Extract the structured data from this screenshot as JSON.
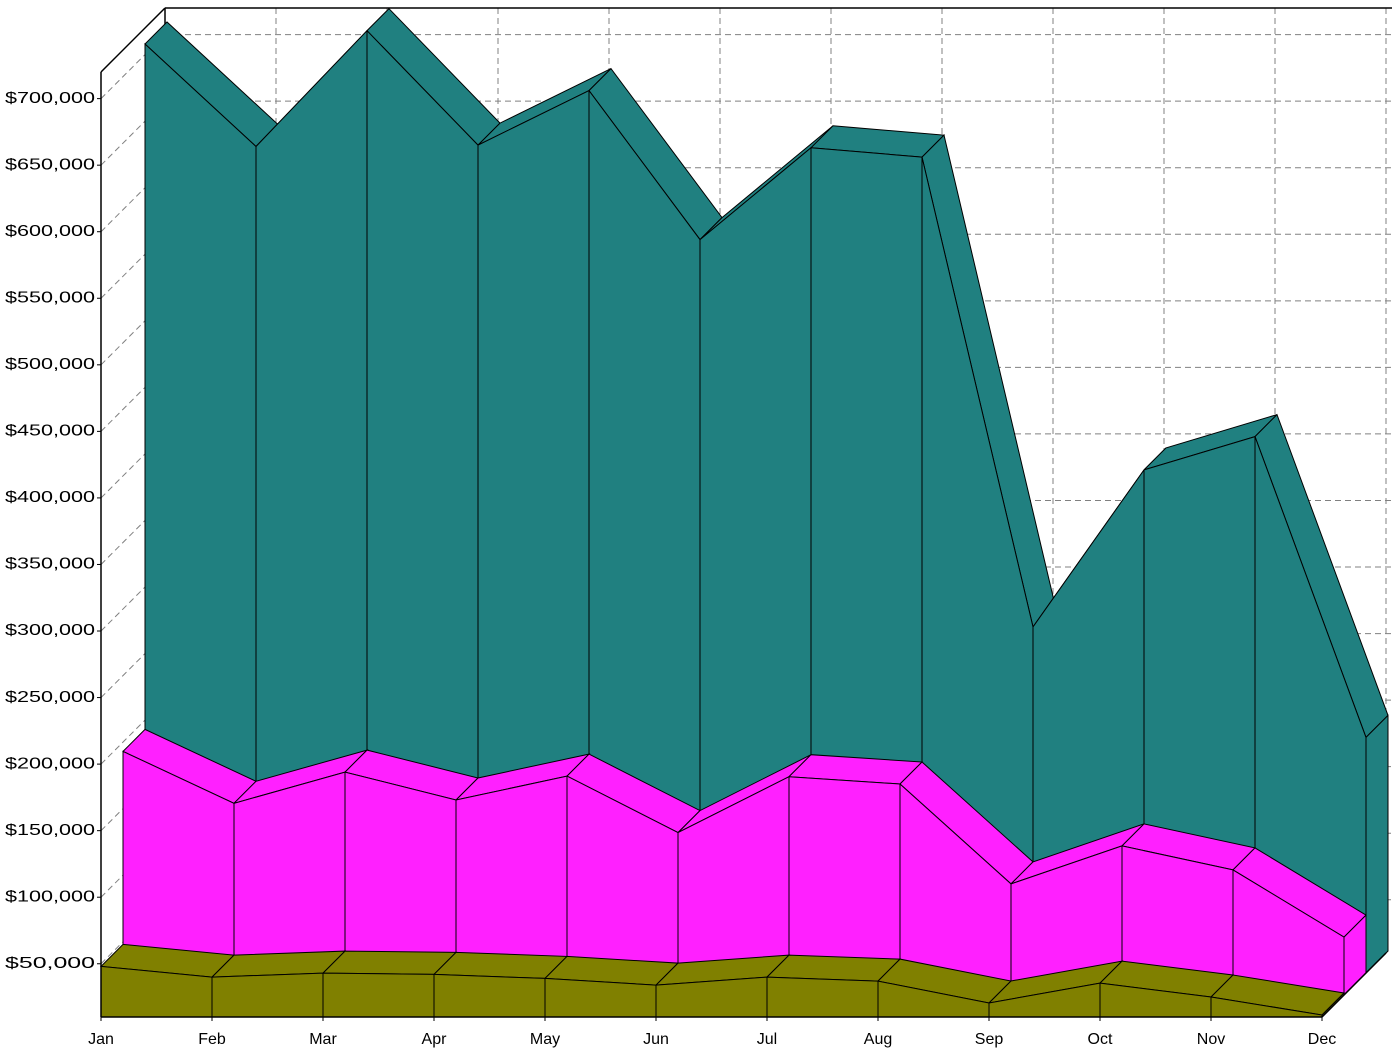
{
  "chart_data": {
    "type": "area3d",
    "categories": [
      "Jan",
      "Feb",
      "Mar",
      "Apr",
      "May",
      "Jun",
      "Jul",
      "Aug",
      "Sep",
      "Oct",
      "Nov",
      "Dec"
    ],
    "series": [
      {
        "color": "#808000",
        "values": [
          48000,
          40000,
          43000,
          42000,
          39000,
          34000,
          40000,
          37000,
          20500,
          35500,
          25000,
          11500
        ]
      },
      {
        "color": "#ff20ff",
        "values": [
          193000,
          154000,
          177500,
          156500,
          174500,
          132000,
          174000,
          168500,
          93500,
          122000,
          104000,
          53500
        ]
      },
      {
        "color": "#208080",
        "values": [
          708000,
          631000,
          718000,
          632000,
          673000,
          561000,
          630000,
          623000,
          270000,
          388000,
          413000,
          187000
        ]
      }
    ],
    "ylim": [
      10000,
      720000
    ],
    "yticks": [
      {
        "value": 50000,
        "label": "$50,000"
      },
      {
        "value": 100000,
        "label": "$100,000"
      },
      {
        "value": 150000,
        "label": "$150,000"
      },
      {
        "value": 200000,
        "label": "$200,000"
      },
      {
        "value": 250000,
        "label": "$250,000"
      },
      {
        "value": 300000,
        "label": "$300,000"
      },
      {
        "value": 350000,
        "label": "$350,000"
      },
      {
        "value": 400000,
        "label": "$400,000"
      },
      {
        "value": 450000,
        "label": "$450,000"
      },
      {
        "value": 500000,
        "label": "$500,000"
      },
      {
        "value": 550000,
        "label": "$550,000"
      },
      {
        "value": 600000,
        "label": "$600,000"
      },
      {
        "value": 650000,
        "label": "$650,000"
      },
      {
        "value": 700000,
        "label": "$700,000"
      }
    ],
    "grid": true
  }
}
